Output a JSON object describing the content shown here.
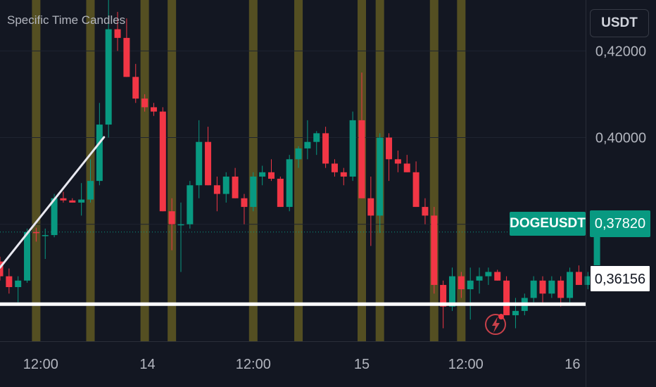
{
  "indicator_title": "Specific Time Candles",
  "currency": "USDT",
  "symbol_tag": "DOGEUSDT",
  "colors": {
    "background": "#131722",
    "up": "#089981",
    "down": "#f23645",
    "highlight": "#544f22",
    "grid": "#1f2430",
    "axis_text": "#b2b5be",
    "trendline": "#e8e8f0",
    "level_line": "#ffffff"
  },
  "chart_data": {
    "type": "candlestick",
    "title": "Specific Time Candles",
    "y_ticks": [
      "0,42000",
      "0,40000"
    ],
    "y_range": [
      0.353,
      0.4285
    ],
    "x_ticks": [
      "12:00",
      "14",
      "12:00",
      "15",
      "12:00",
      "16"
    ],
    "current_price": "0,37820",
    "level_price": "0,36156",
    "level": 0.36156,
    "candles": [
      [
        0.3714,
        0.3725,
        0.367,
        0.368
      ],
      [
        0.368,
        0.3698,
        0.364,
        0.3655
      ],
      [
        0.3655,
        0.368,
        0.362,
        0.367
      ],
      [
        0.367,
        0.379,
        0.3665,
        0.3782
      ],
      [
        0.3782,
        0.3792,
        0.376,
        0.378
      ],
      [
        0.3775,
        0.379,
        0.372,
        0.3775
      ],
      [
        0.3775,
        0.387,
        0.377,
        0.386
      ],
      [
        0.386,
        0.3875,
        0.385,
        0.3855
      ],
      [
        0.3855,
        0.386,
        0.385,
        0.385
      ],
      [
        0.385,
        0.3895,
        0.382,
        0.3857
      ],
      [
        0.3857,
        0.395,
        0.385,
        0.39
      ],
      [
        0.39,
        0.408,
        0.389,
        0.403
      ],
      [
        0.403,
        0.434,
        0.4,
        0.425
      ],
      [
        0.425,
        0.429,
        0.42,
        0.423
      ],
      [
        0.423,
        0.4275,
        0.414,
        0.414
      ],
      [
        0.414,
        0.417,
        0.408,
        0.409
      ],
      [
        0.409,
        0.41,
        0.406,
        0.407
      ],
      [
        0.407,
        0.408,
        0.405,
        0.406
      ],
      [
        0.406,
        0.407,
        0.383,
        0.383
      ],
      [
        0.383,
        0.386,
        0.374,
        0.38
      ],
      [
        0.38,
        0.385,
        0.369,
        0.38
      ],
      [
        0.38,
        0.39,
        0.379,
        0.389
      ],
      [
        0.389,
        0.404,
        0.386,
        0.399
      ],
      [
        0.399,
        0.4025,
        0.389,
        0.389
      ],
      [
        0.389,
        0.391,
        0.383,
        0.387
      ],
      [
        0.387,
        0.392,
        0.385,
        0.391
      ],
      [
        0.391,
        0.393,
        0.386,
        0.386
      ],
      [
        0.386,
        0.387,
        0.38,
        0.384
      ],
      [
        0.384,
        0.392,
        0.383,
        0.391
      ],
      [
        0.391,
        0.3935,
        0.389,
        0.392
      ],
      [
        0.392,
        0.395,
        0.39,
        0.3905
      ],
      [
        0.3905,
        0.391,
        0.384,
        0.384
      ],
      [
        0.384,
        0.396,
        0.383,
        0.395
      ],
      [
        0.395,
        0.398,
        0.393,
        0.3975
      ],
      [
        0.3975,
        0.404,
        0.395,
        0.399
      ],
      [
        0.399,
        0.4015,
        0.396,
        0.401
      ],
      [
        0.401,
        0.4025,
        0.393,
        0.394
      ],
      [
        0.394,
        0.395,
        0.391,
        0.392
      ],
      [
        0.392,
        0.393,
        0.389,
        0.391
      ],
      [
        0.391,
        0.406,
        0.39,
        0.404
      ],
      [
        0.404,
        0.415,
        0.386,
        0.386
      ],
      [
        0.386,
        0.391,
        0.375,
        0.382
      ],
      [
        0.382,
        0.401,
        0.378,
        0.4
      ],
      [
        0.4,
        0.401,
        0.39,
        0.395
      ],
      [
        0.395,
        0.397,
        0.392,
        0.394
      ],
      [
        0.394,
        0.396,
        0.392,
        0.392
      ],
      [
        0.392,
        0.3945,
        0.384,
        0.384
      ],
      [
        0.384,
        0.386,
        0.38,
        0.382
      ],
      [
        0.382,
        0.384,
        0.364,
        0.366
      ],
      [
        0.366,
        0.367,
        0.356,
        0.361
      ],
      [
        0.361,
        0.37,
        0.36,
        0.368
      ],
      [
        0.368,
        0.369,
        0.363,
        0.365
      ],
      [
        0.365,
        0.37,
        0.358,
        0.367
      ],
      [
        0.367,
        0.37,
        0.364,
        0.368
      ],
      [
        0.368,
        0.37,
        0.366,
        0.369
      ],
      [
        0.369,
        0.3695,
        0.367,
        0.367
      ],
      [
        0.367,
        0.368,
        0.359,
        0.359
      ],
      [
        0.359,
        0.363,
        0.356,
        0.36
      ],
      [
        0.36,
        0.364,
        0.359,
        0.363
      ],
      [
        0.363,
        0.368,
        0.362,
        0.367
      ],
      [
        0.367,
        0.368,
        0.362,
        0.364
      ],
      [
        0.364,
        0.368,
        0.363,
        0.367
      ],
      [
        0.367,
        0.368,
        0.361,
        0.363
      ],
      [
        0.363,
        0.37,
        0.362,
        0.369
      ],
      [
        0.369,
        0.3705,
        0.366,
        0.366
      ],
      [
        0.366,
        0.369,
        0.365,
        0.368
      ],
      [
        0.368,
        0.38,
        0.366,
        0.3782
      ]
    ]
  }
}
